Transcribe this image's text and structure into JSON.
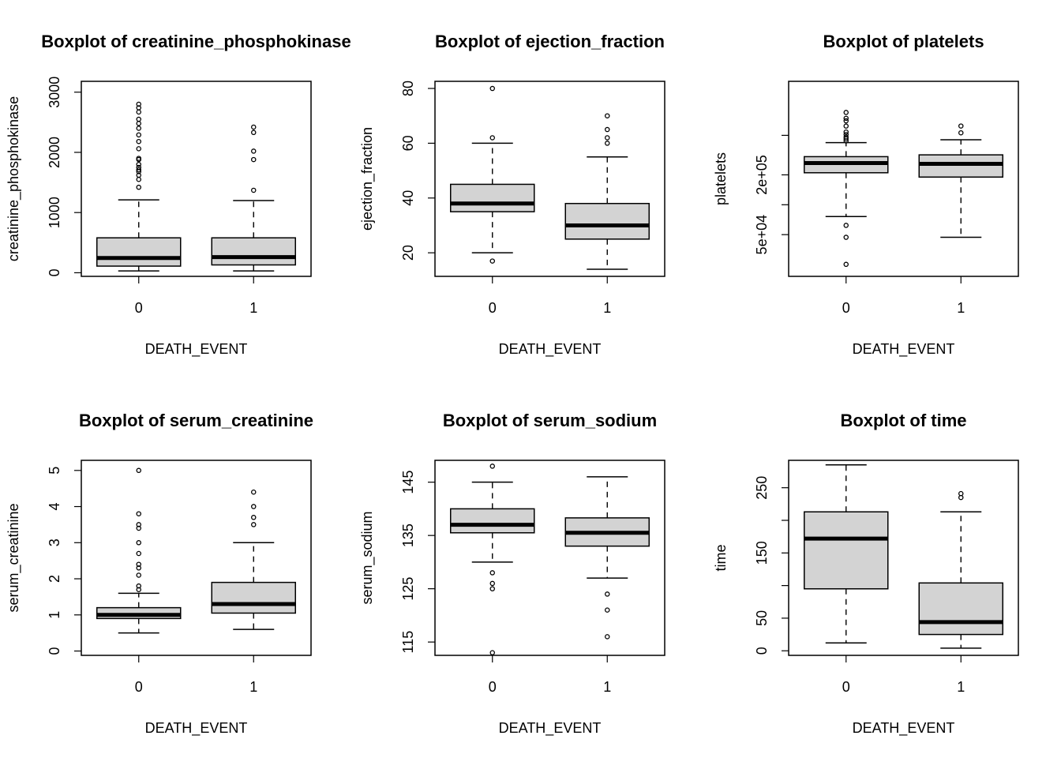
{
  "chart_data": [
    {
      "type": "boxplot",
      "title": "Boxplot of creatinine_phosphokinase",
      "xlabel": "DEATH_EVENT",
      "ylabel": "creatinine_phosphokinase",
      "categories": [
        "0",
        "1"
      ],
      "ylim": [
        -60,
        3180
      ],
      "yticks": [
        0,
        1000,
        2000,
        3000
      ],
      "ytick_labels": [
        "0",
        "1000",
        "2000",
        "3000"
      ],
      "log": false,
      "boxes": [
        {
          "whisker_low": 30,
          "q1": 110,
          "median": 245,
          "q3": 580,
          "whisker_high": 1210,
          "outliers": [
            1420,
            1550,
            1620,
            1680,
            1710,
            1750,
            1800,
            1880,
            1900,
            2060,
            2180,
            2290,
            2400,
            2480,
            2550,
            2670,
            2740,
            2800
          ]
        },
        {
          "whisker_low": 30,
          "q1": 130,
          "median": 260,
          "q3": 580,
          "whisker_high": 1200,
          "outliers": [
            1370,
            1880,
            2020,
            2330,
            2420
          ]
        }
      ]
    },
    {
      "type": "boxplot",
      "title": "Boxplot of ejection_fraction",
      "xlabel": "DEATH_EVENT",
      "ylabel": "ejection_fraction",
      "categories": [
        "0",
        "1"
      ],
      "ylim": [
        11.4,
        82.6
      ],
      "yticks": [
        20,
        40,
        60,
        80
      ],
      "ytick_labels": [
        "20",
        "40",
        "60",
        "80"
      ],
      "log": false,
      "boxes": [
        {
          "whisker_low": 20,
          "q1": 35,
          "median": 38,
          "q3": 45,
          "whisker_high": 60,
          "outliers": [
            17,
            62,
            80
          ]
        },
        {
          "whisker_low": 14,
          "q1": 25,
          "median": 30,
          "q3": 38,
          "whisker_high": 55,
          "outliers": [
            60,
            62,
            65,
            70
          ]
        }
      ]
    },
    {
      "type": "boxplot",
      "title": "Boxplot of platelets",
      "xlabel": "DEATH_EVENT",
      "ylabel": "platelets",
      "categories": [
        "0",
        "1"
      ],
      "ylim": [
        19000,
        1750000
      ],
      "yticks": [
        50000,
        100000,
        200000,
        500000
      ],
      "ytick_labels": [
        "5e+04",
        "",
        "2e+05",
        ""
      ],
      "log": true,
      "boxes": [
        {
          "whisker_low": 76000,
          "q1": 210000,
          "median": 263000,
          "q3": 305000,
          "whisker_high": 422000,
          "outliers": [
            25100,
            47000,
            62000,
            440000,
            460000,
            480000,
            510000,
            540000,
            620000,
            700000,
            742000,
            850000
          ]
        },
        {
          "whisker_low": 47000,
          "q1": 190000,
          "median": 258000,
          "q3": 318000,
          "whisker_high": 451000,
          "outliers": [
            530000,
            621000
          ]
        }
      ]
    },
    {
      "type": "boxplot",
      "title": "Boxplot of serum_creatinine",
      "xlabel": "DEATH_EVENT",
      "ylabel": "serum_creatinine",
      "categories": [
        "0",
        "1"
      ],
      "ylim": [
        -0.12,
        5.28
      ],
      "yticks": [
        0,
        1,
        2,
        3,
        4,
        5
      ],
      "ytick_labels": [
        "0",
        "1",
        "2",
        "3",
        "4",
        "5"
      ],
      "log": false,
      "boxes": [
        {
          "whisker_low": 0.5,
          "q1": 0.9,
          "median": 1.0,
          "q3": 1.2,
          "whisker_high": 1.6,
          "outliers": [
            1.7,
            1.8,
            2.1,
            2.3,
            2.4,
            2.7,
            3.0,
            3.4,
            3.5,
            3.8,
            5.0
          ]
        },
        {
          "whisker_low": 0.6,
          "q1": 1.05,
          "median": 1.3,
          "q3": 1.9,
          "whisker_high": 3.0,
          "outliers": [
            3.5,
            3.7,
            4.0,
            4.4
          ]
        }
      ]
    },
    {
      "type": "boxplot",
      "title": "Boxplot of serum_sodium",
      "xlabel": "DEATH_EVENT",
      "ylabel": "serum_sodium",
      "categories": [
        "0",
        "1"
      ],
      "ylim": [
        112.5,
        149.1
      ],
      "yticks": [
        115,
        125,
        135,
        145
      ],
      "ytick_labels": [
        "115",
        "125",
        "135",
        "145"
      ],
      "log": false,
      "boxes": [
        {
          "whisker_low": 130,
          "q1": 135.5,
          "median": 137,
          "q3": 140,
          "whisker_high": 145,
          "outliers": [
            113,
            125,
            126,
            128,
            148
          ]
        },
        {
          "whisker_low": 127,
          "q1": 133,
          "median": 135.5,
          "q3": 138.3,
          "whisker_high": 146,
          "outliers": [
            116,
            121,
            124
          ]
        }
      ]
    },
    {
      "type": "boxplot",
      "title": "Boxplot of time",
      "xlabel": "DEATH_EVENT",
      "ylabel": "time",
      "categories": [
        "0",
        "1"
      ],
      "ylim": [
        -7,
        292
      ],
      "yticks": [
        0,
        50,
        150,
        250
      ],
      "ytick_labels": [
        "0",
        "50",
        "150",
        "250"
      ],
      "minor_yticks": [
        100,
        200
      ],
      "log": false,
      "boxes": [
        {
          "whisker_low": 12,
          "q1": 95,
          "median": 172,
          "q3": 213,
          "whisker_high": 285,
          "outliers": []
        },
        {
          "whisker_low": 4,
          "q1": 25,
          "median": 44,
          "q3": 104,
          "whisker_high": 213,
          "outliers": [
            235,
            241
          ]
        }
      ]
    }
  ]
}
